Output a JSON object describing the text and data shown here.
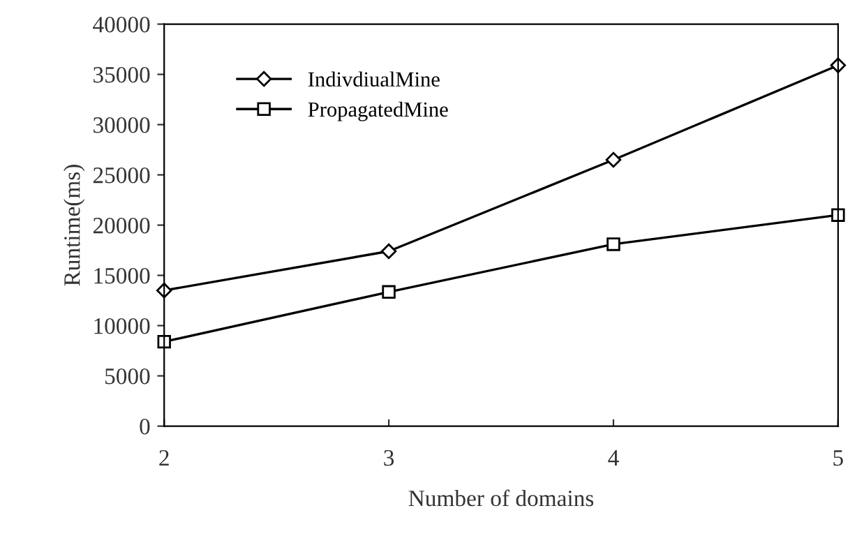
{
  "chart_data": {
    "type": "line",
    "xlabel": "Number of domains",
    "ylabel": "Runtime(ms)",
    "x": [
      2,
      3,
      4,
      5
    ],
    "xlim": [
      2,
      5
    ],
    "xticks": [
      2,
      3,
      4,
      5
    ],
    "ylim": [
      0,
      40000
    ],
    "yticks": [
      0,
      5000,
      10000,
      15000,
      20000,
      25000,
      30000,
      35000,
      40000
    ],
    "grid": false,
    "legend": "top left",
    "line_style": "solid",
    "series": [
      {
        "name": "IndivdiualMine",
        "color": "#000000",
        "marker": "diamond",
        "values": [
          13500,
          17400,
          26500,
          35900
        ]
      },
      {
        "name": "PropagatedMine",
        "color": "#000000",
        "marker": "square",
        "values": [
          8400,
          13350,
          18100,
          21000
        ]
      }
    ]
  }
}
